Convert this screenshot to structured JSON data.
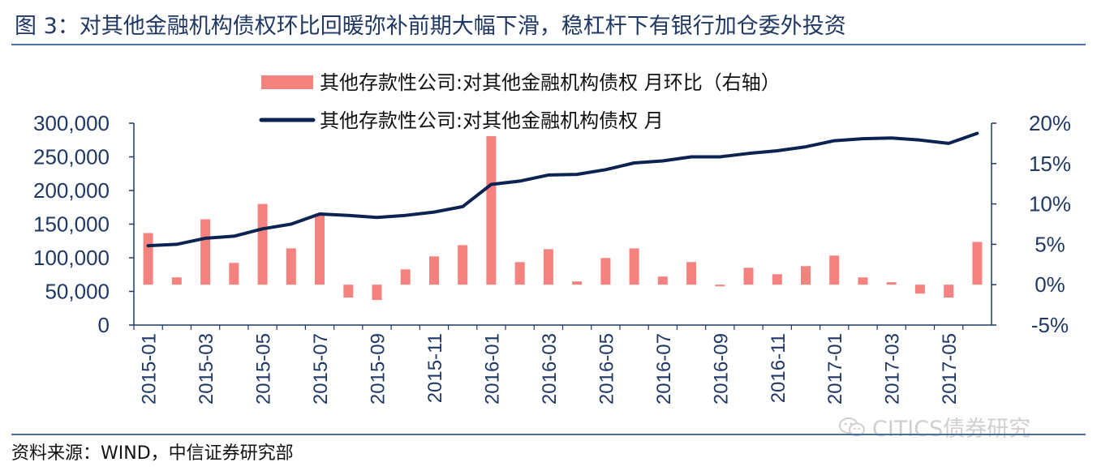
{
  "figure": {
    "title": "图 3：对其他金融机构债权环比回暖弥补前期大幅下滑，稳杠杆下有银行加仓委外投资",
    "source": "资料来源：WIND，中信证券研究部",
    "watermark": "CITICS债券研究",
    "watermark_icon": "wechat-icon"
  },
  "chart_data": {
    "type": "bar+line",
    "title": "",
    "x": [
      "2015-01",
      "2015-02",
      "2015-03",
      "2015-04",
      "2015-05",
      "2015-06",
      "2015-07",
      "2015-08",
      "2015-09",
      "2015-10",
      "2015-11",
      "2015-12",
      "2016-01",
      "2016-02",
      "2016-03",
      "2016-04",
      "2016-05",
      "2016-06",
      "2016-07",
      "2016-08",
      "2016-09",
      "2016-10",
      "2016-11",
      "2016-12",
      "2017-01",
      "2017-02",
      "2017-03",
      "2017-04",
      "2017-05",
      "2017-06"
    ],
    "x_tick_labels": [
      "2015-01",
      "2015-03",
      "2015-05",
      "2015-07",
      "2015-09",
      "2015-11",
      "2016-01",
      "2016-03",
      "2016-05",
      "2016-07",
      "2016-09",
      "2016-11",
      "2017-01",
      "2017-03",
      "2017-05"
    ],
    "series": [
      {
        "name": "其他存款性公司:对其他金融机构债权 月环比（右轴）",
        "type": "bar",
        "axis": "right",
        "unit": "%",
        "color": "#f4827f",
        "values": [
          6.4,
          0.9,
          8.1,
          2.7,
          10.0,
          4.5,
          8.8,
          -1.6,
          -1.9,
          1.9,
          3.5,
          4.9,
          18.4,
          2.8,
          4.4,
          0.4,
          3.3,
          4.5,
          1.0,
          2.8,
          -0.2,
          2.1,
          1.3,
          2.3,
          3.6,
          0.9,
          0.3,
          -1.1,
          -1.6,
          5.3
        ]
      },
      {
        "name": "其他存款性公司:对其他金融机构债权 月",
        "type": "line",
        "axis": "left",
        "color": "#0b2350",
        "values": [
          118000,
          120000,
          129000,
          132000,
          143000,
          150000,
          165000,
          163000,
          160000,
          163000,
          168000,
          176000,
          209000,
          214000,
          223000,
          224000,
          231000,
          241000,
          244000,
          250000,
          250000,
          255000,
          259000,
          265000,
          274000,
          277000,
          278000,
          275000,
          270000,
          285000
        ]
      }
    ],
    "y_left": {
      "ylim": [
        0,
        300000
      ],
      "ticks": [
        "0",
        "50,000",
        "100,000",
        "150,000",
        "200,000",
        "250,000",
        "300,000"
      ],
      "tick_values": [
        0,
        50000,
        100000,
        150000,
        200000,
        250000,
        300000
      ]
    },
    "y_right": {
      "ylim": [
        -5,
        20
      ],
      "ticks": [
        "-5%",
        "0%",
        "5%",
        "10%",
        "15%",
        "20%"
      ],
      "tick_values": [
        -5,
        0,
        5,
        10,
        15,
        20
      ]
    },
    "legend_position": "top-center",
    "grid": false
  }
}
